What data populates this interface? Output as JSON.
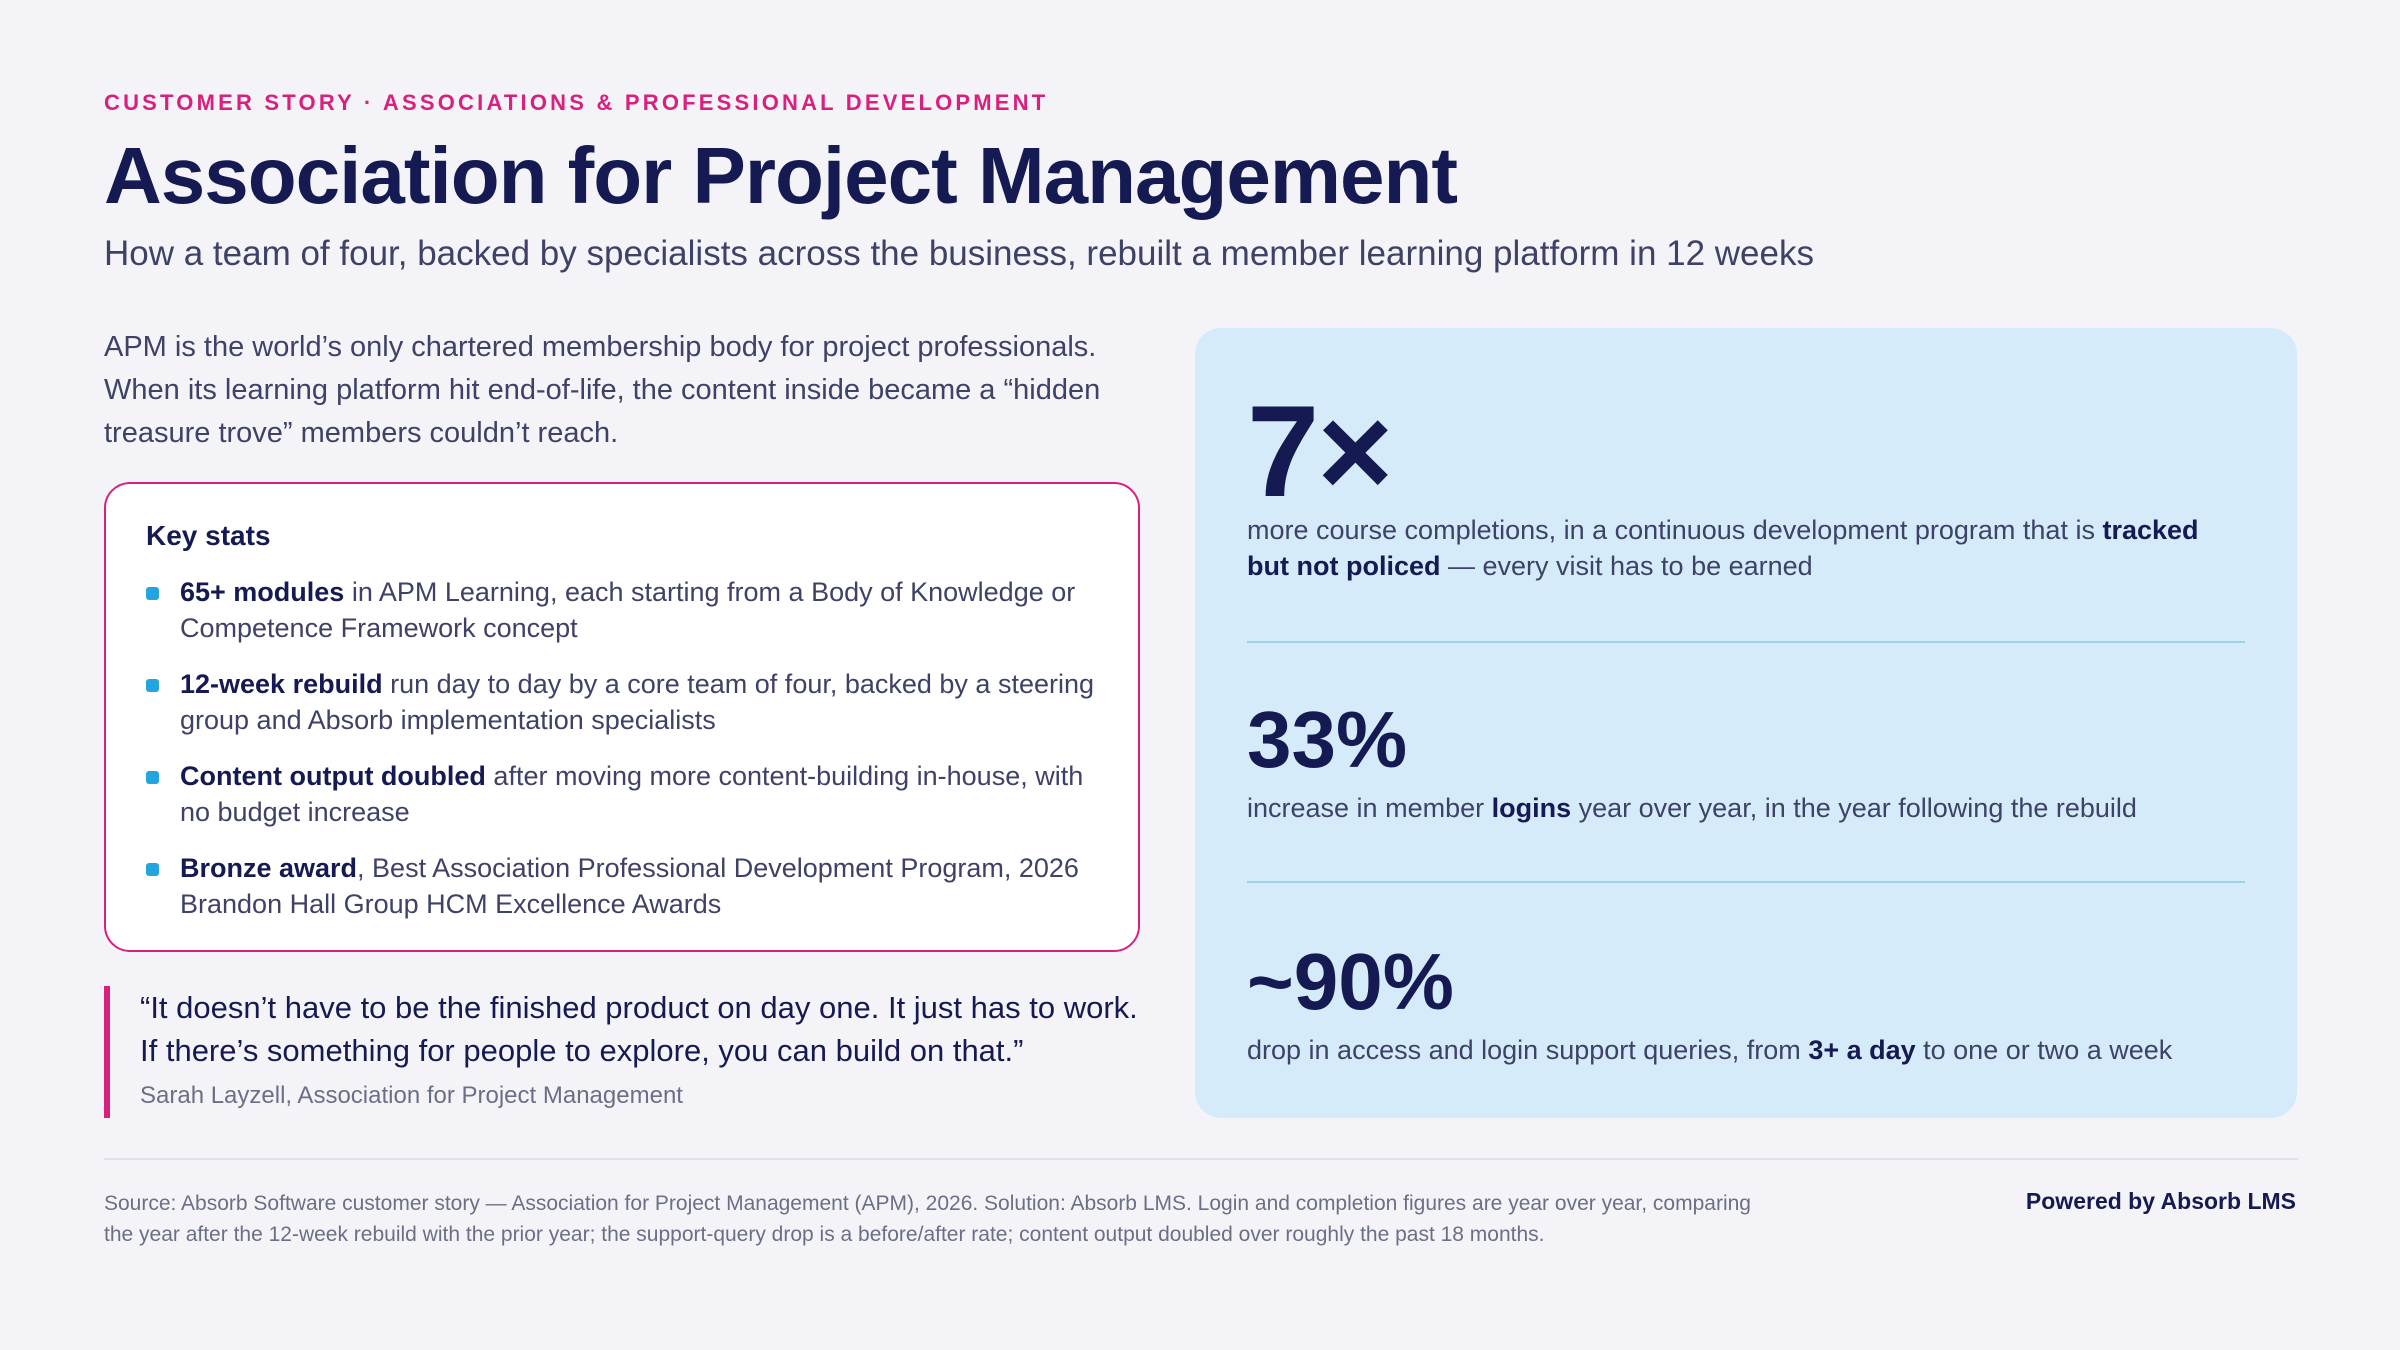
{
  "header": {
    "eyebrow": "CUSTOMER STORY · ASSOCIATIONS & PROFESSIONAL DEVELOPMENT",
    "title": "Association for Project Management",
    "subtitle": "How a team of four, backed by specialists across the business, rebuilt a member learning platform in 12 weeks"
  },
  "intro": "APM is the world’s only chartered membership body for project professionals. When its learning platform hit end-of-life, the content inside became a “hidden treasure trove” members couldn’t reach.",
  "key_stats": {
    "heading": "Key stats",
    "items": [
      {
        "bold": "65+ modules",
        "text": " in APM Learning, each starting from a Body of Knowledge or Competence Framework concept"
      },
      {
        "bold": "12-week rebuild",
        "text": " run day to day by a core team of four, backed by a steering group and Absorb implementation specialists"
      },
      {
        "bold": "Content output doubled",
        "text": " after moving more content-building in-house, with no budget increase"
      },
      {
        "bold": "Bronze award",
        "text": ", Best Association Professional Development Program, 2026 Brandon Hall Group HCM Excellence Awards"
      }
    ]
  },
  "quote": {
    "text": "“It doesn’t have to be the finished product on day one. It just has to work. If there’s something for people to explore, you can build on that.”",
    "attribution": "Sarah Layzell, Association for Project Management"
  },
  "metrics": [
    {
      "value": "7×",
      "pre": "more course completions, in a continuous development program that is ",
      "bold": "tracked but not policed",
      "post": " — every visit has to be earned"
    },
    {
      "value": "33%",
      "pre": "increase in member ",
      "bold": "logins",
      "post": " year over year, in the year following the rebuild"
    },
    {
      "value": "~90%",
      "pre": "drop in access and login support queries, from ",
      "bold": "3+ a day",
      "post": " to one or two a week"
    }
  ],
  "footer": {
    "source": "Source: Absorb Software customer story — Association for Project Management (APM), 2026. Solution: Absorb LMS. Login and completion figures are year over year, comparing the year after the 12-week rebuild with the prior year; the support-query drop is a before/after rate; content output doubled over roughly the past 18 months.",
    "powered_by": "Powered by Absorb LMS"
  },
  "colors": {
    "accent": "#d9207f",
    "navy": "#151a52",
    "bullet": "#23a6e0",
    "panel": "#d6ebfa"
  }
}
